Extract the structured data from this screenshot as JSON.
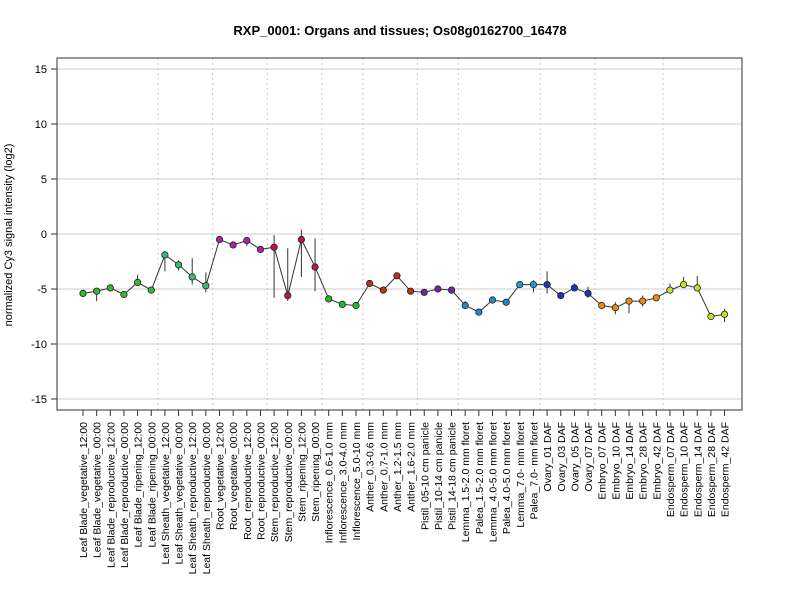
{
  "chart_data": {
    "type": "line",
    "title": "RXP_0001: Organs and tissues; Os08g0162700_16478",
    "xlabel": "",
    "ylabel": "normalized Cy3 signal intensity (log2)",
    "ylim": [
      -16,
      16
    ],
    "yticks": [
      -15,
      -10,
      -5,
      0,
      5,
      10,
      15
    ],
    "grid": true,
    "legend": "none",
    "categories": [
      "Leaf Blade_vegetative_12:00",
      "Leaf Blade_vegetative_00:00",
      "Leaf Blade_reproductive_12:00",
      "Leaf Blade_reproductive_00:00",
      "Leaf Blade_ripening_12:00",
      "Leaf Blade_ripening_00:00",
      "Leaf Sheath_vegetative_12:00",
      "Leaf Sheath_vegetative_00:00",
      "Leaf Sheath_reproductive_12:00",
      "Leaf Sheath_reproductive_00:00",
      "Root_vegetative_12:00",
      "Root_vegetative_00:00",
      "Root_reproductive_12:00",
      "Root_reproductive_00:00",
      "Stem_reproductive_12:00",
      "Stem_reproductive_00:00",
      "Stem_ripening_12:00",
      "Stem_ripening_00:00",
      "Inflorescence_0.6-1.0 mm",
      "Inflorescence_3.0-4.0 mm",
      "Inflorescence_5.0-10 mm",
      "Anther_0.3-0.6 mm",
      "Anther_0.7-1.0 mm",
      "Anther_1.2-1.5 mm",
      "Anther_1.6-2.0 mm",
      "Pistil_05-10 cm panicle",
      "Pistil_10-14 cm panicle",
      "Pistil_14-18 cm panicle",
      "Lemma_1.5-2.0 mm floret",
      "Palea_1.5-2.0 mm floret",
      "Lemma_4.0-5.0 mm floret",
      "Palea_4.0-5.0 mm floret",
      "Lemma_7.0- mm floret",
      "Palea_7.0- mm floret",
      "Ovary_01 DAF",
      "Ovary_03 DAF",
      "Ovary_05 DAF",
      "Ovary_07 DAF",
      "Embryo_07 DAF",
      "Embryo_10 DAF",
      "Embryo_14 DAF",
      "Embryo_28 DAF",
      "Embryo_42 DAF",
      "Endosperm_07 DAF",
      "Endosperm_10 DAF",
      "Endosperm_14 DAF",
      "Endosperm_28 DAF",
      "Endosperm_42 DAF"
    ],
    "values": [
      -5.4,
      -5.2,
      -4.9,
      -5.5,
      -4.4,
      -5.1,
      -1.9,
      -2.8,
      -3.9,
      -4.7,
      -0.5,
      -1.0,
      -0.6,
      -1.4,
      -1.2,
      -5.6,
      -0.5,
      -3.0,
      -5.9,
      -6.4,
      -6.5,
      -4.5,
      -5.1,
      -3.8,
      -5.2,
      -5.3,
      -5.0,
      -5.1,
      -6.5,
      -7.1,
      -6.0,
      -6.2,
      -4.6,
      -4.6,
      -4.6,
      -5.6,
      -4.9,
      -5.4,
      -6.5,
      -6.7,
      -6.1,
      -6.1,
      -5.8,
      -5.1,
      -4.6,
      -4.9,
      -7.5,
      -7.3
    ],
    "err_low": [
      -5.6,
      -6.1,
      -5.0,
      -5.7,
      -4.7,
      -5.3,
      -3.4,
      -3.3,
      -4.6,
      -5.3,
      -0.6,
      -1.2,
      -1.1,
      -1.6,
      -5.8,
      -6.1,
      -3.9,
      -5.2,
      -6.1,
      -6.5,
      -6.7,
      -4.7,
      -5.3,
      -4.0,
      -5.4,
      -5.5,
      -5.2,
      -5.3,
      -6.8,
      -7.3,
      -6.2,
      -6.4,
      -4.8,
      -5.3,
      -5.4,
      -5.8,
      -5.2,
      -5.8,
      -6.7,
      -7.3,
      -7.2,
      -6.6,
      -6.0,
      -5.4,
      -4.9,
      -5.2,
      -7.7,
      -8.0
    ],
    "err_high": [
      -5.2,
      -5.0,
      -4.8,
      -5.3,
      -3.7,
      -4.9,
      -1.7,
      -2.4,
      -2.2,
      -3.5,
      -0.4,
      -0.8,
      -0.5,
      -1.2,
      -0.1,
      -1.3,
      0.4,
      -0.4,
      -5.7,
      -6.3,
      -6.3,
      -4.3,
      -4.9,
      -3.6,
      -5.0,
      -5.1,
      -4.8,
      -4.9,
      -6.1,
      -6.9,
      -5.8,
      -6.0,
      -4.4,
      -4.2,
      -3.4,
      -5.4,
      -4.5,
      -4.8,
      -6.3,
      -6.2,
      -5.8,
      -5.6,
      -5.6,
      -4.5,
      -3.9,
      -3.8,
      -7.3,
      -6.8
    ],
    "colors": [
      "#33bb33",
      "#33bb33",
      "#33bb33",
      "#33bb33",
      "#33bb33",
      "#33bb33",
      "#33bb77",
      "#33bb77",
      "#33bb77",
      "#33bb77",
      "#aa22aa",
      "#aa22aa",
      "#aa22aa",
      "#aa22aa",
      "#bb1155",
      "#bb1155",
      "#bb1155",
      "#bb1155",
      "#22bb22",
      "#22bb22",
      "#22bb22",
      "#bb3311",
      "#bb3311",
      "#bb3311",
      "#bb3311",
      "#7722aa",
      "#7722aa",
      "#7722aa",
      "#2288cc",
      "#2288cc",
      "#2288cc",
      "#2288cc",
      "#2299dd",
      "#2299dd",
      "#2233bb",
      "#2233bb",
      "#2233bb",
      "#2233bb",
      "#ee8811",
      "#ee8811",
      "#ee8811",
      "#ee8811",
      "#ee8811",
      "#ccdd22",
      "#ccdd22",
      "#ccdd22",
      "#ccdd22",
      "#ccdd22"
    ],
    "group_separators_after": [
      5,
      9,
      13,
      17,
      20,
      24,
      27,
      33,
      37,
      42
    ]
  }
}
